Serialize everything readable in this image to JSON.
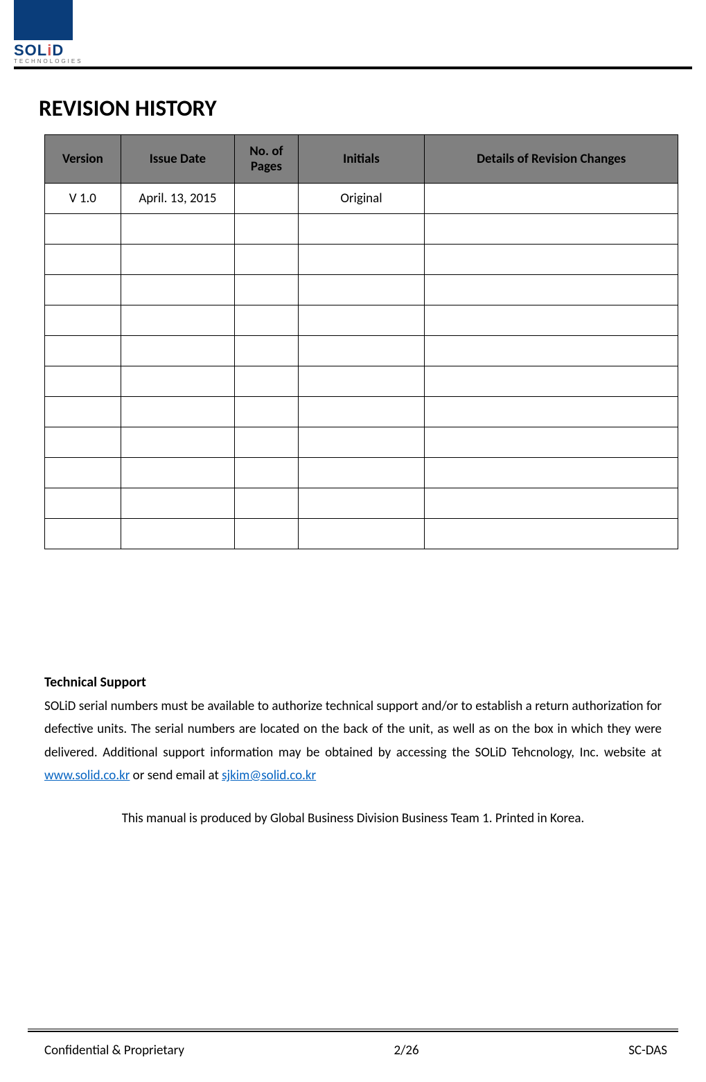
{
  "logo": {
    "brand_main": "SOL",
    "brand_i": "i",
    "brand_end": "D",
    "sub": "TECHNOLOGIES",
    "block_color": "#0a3d7a"
  },
  "heading": "REVISION HISTORY",
  "table": {
    "headers": {
      "version": "Version",
      "issue_date": "Issue Date",
      "pages": "No. of Pages",
      "initials": "Initials",
      "details": "Details of Revision Changes"
    },
    "header_bg": "#808080",
    "rows": [
      {
        "version": "V 1.0",
        "issue_date": "April. 13, 2015",
        "pages": "",
        "initials": "Original",
        "details": ""
      },
      {
        "version": "",
        "issue_date": "",
        "pages": "",
        "initials": "",
        "details": ""
      },
      {
        "version": "",
        "issue_date": "",
        "pages": "",
        "initials": "",
        "details": ""
      },
      {
        "version": "",
        "issue_date": "",
        "pages": "",
        "initials": "",
        "details": ""
      },
      {
        "version": "",
        "issue_date": "",
        "pages": "",
        "initials": "",
        "details": ""
      },
      {
        "version": "",
        "issue_date": "",
        "pages": "",
        "initials": "",
        "details": ""
      },
      {
        "version": "",
        "issue_date": "",
        "pages": "",
        "initials": "",
        "details": ""
      },
      {
        "version": "",
        "issue_date": "",
        "pages": "",
        "initials": "",
        "details": ""
      },
      {
        "version": "",
        "issue_date": "",
        "pages": "",
        "initials": "",
        "details": ""
      },
      {
        "version": "",
        "issue_date": "",
        "pages": "",
        "initials": "",
        "details": ""
      },
      {
        "version": "",
        "issue_date": "",
        "pages": "",
        "initials": "",
        "details": ""
      },
      {
        "version": "",
        "issue_date": "",
        "pages": "",
        "initials": "",
        "details": ""
      }
    ]
  },
  "tech": {
    "title": "Technical Support",
    "body_pre": "SOLiD serial numbers must be available to authorize technical support and/or to establish a return authorization for defective units. The serial numbers are located on the back of the unit, as well as on the box in which they were delivered. Additional support information may be obtained by accessing the SOLiD Tehcnology, Inc. website at ",
    "link1_text": "www.solid.co.kr",
    "body_mid": " or send email at ",
    "link2_text": "sjkim@solid.co.kr"
  },
  "produced": "This manual is produced by Global Business Division Business Team 1. Printed in Korea.",
  "footer": {
    "left": "Confidential & Proprietary",
    "center": "2/26",
    "right": "SC-DAS"
  }
}
